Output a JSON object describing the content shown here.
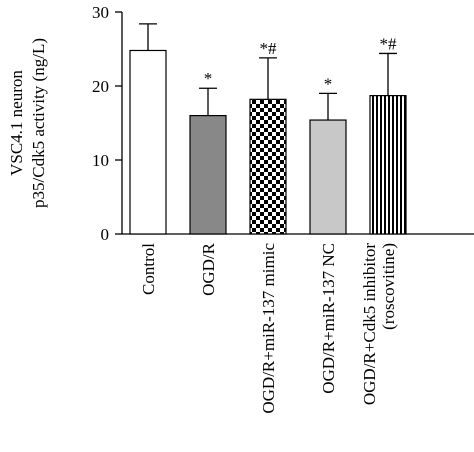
{
  "chart_data": {
    "type": "bar",
    "ylabel_lines": [
      "VSC4.1 neuron",
      "p35/Cdk5 activity (ng/L)"
    ],
    "xlabel": "",
    "ylim": [
      0,
      30
    ],
    "yticks": [
      0,
      10,
      20,
      30
    ],
    "categories": [
      "Control",
      "OGD/R",
      "OGD/R+miR-137 mimic",
      "OGD/R+miR-137 NC",
      "OGD/R+Cdk5 inhibitor (roscovitine)"
    ],
    "category_lines": [
      [
        "Control"
      ],
      [
        "OGD/R"
      ],
      [
        "OGD/R+miR-137 mimic"
      ],
      [
        "OGD/R+miR-137 NC"
      ],
      [
        "OGD/R+Cdk5 inhibitor",
        "(roscovitine)"
      ]
    ],
    "values": [
      24.8,
      16.0,
      18.2,
      15.4,
      18.7
    ],
    "errors": [
      3.6,
      3.7,
      5.6,
      3.6,
      5.7
    ],
    "annotations": [
      "",
      "*",
      "*#",
      "*",
      "*#"
    ],
    "fills": [
      "white",
      "dark-gray",
      "checkerboard",
      "light-gray",
      "vertical-stripes"
    ],
    "colors": {
      "dark_gray": "#888888",
      "light_gray": "#c8c8c8",
      "pattern": "#000000",
      "background": "#ffffff"
    },
    "grid": false,
    "legend": "none"
  }
}
